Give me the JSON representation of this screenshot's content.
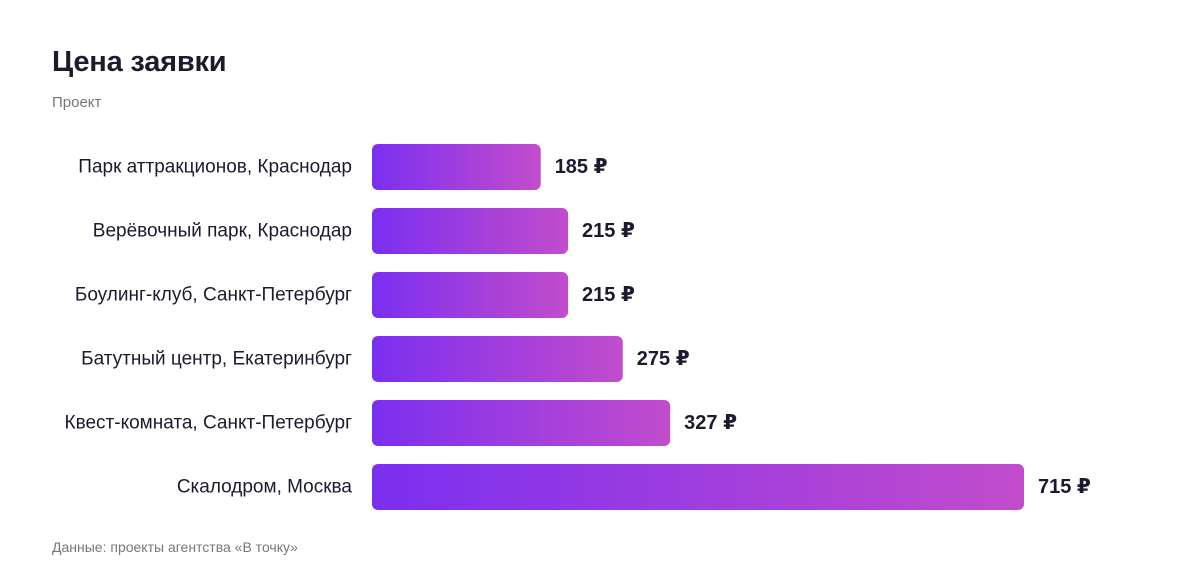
{
  "chart_data": {
    "type": "bar",
    "orientation": "horizontal",
    "title": "Цена заявки",
    "subtitle": "Проект",
    "categories": [
      "Парк аттракционов, Краснодар",
      "Верёвочный парк, Краснодар",
      "Боулинг-клуб, Санкт-Петербург",
      "Батутный центр, Екатеринбург",
      "Квест-комната, Санкт-Петербург",
      "Скалодром, Москва"
    ],
    "values": [
      185,
      215,
      215,
      275,
      327,
      715
    ],
    "value_labels": [
      "185 ₽",
      "215 ₽",
      "215 ₽",
      "275 ₽",
      "327 ₽",
      "715 ₽"
    ],
    "unit": "₽",
    "xlim": [
      0,
      715
    ],
    "grid": false,
    "legend": "none",
    "colors": {
      "gradient_start": "#7b2ff0",
      "gradient_end": "#c24ccc"
    },
    "source": "Данные: проекты агентства «В точку»"
  }
}
